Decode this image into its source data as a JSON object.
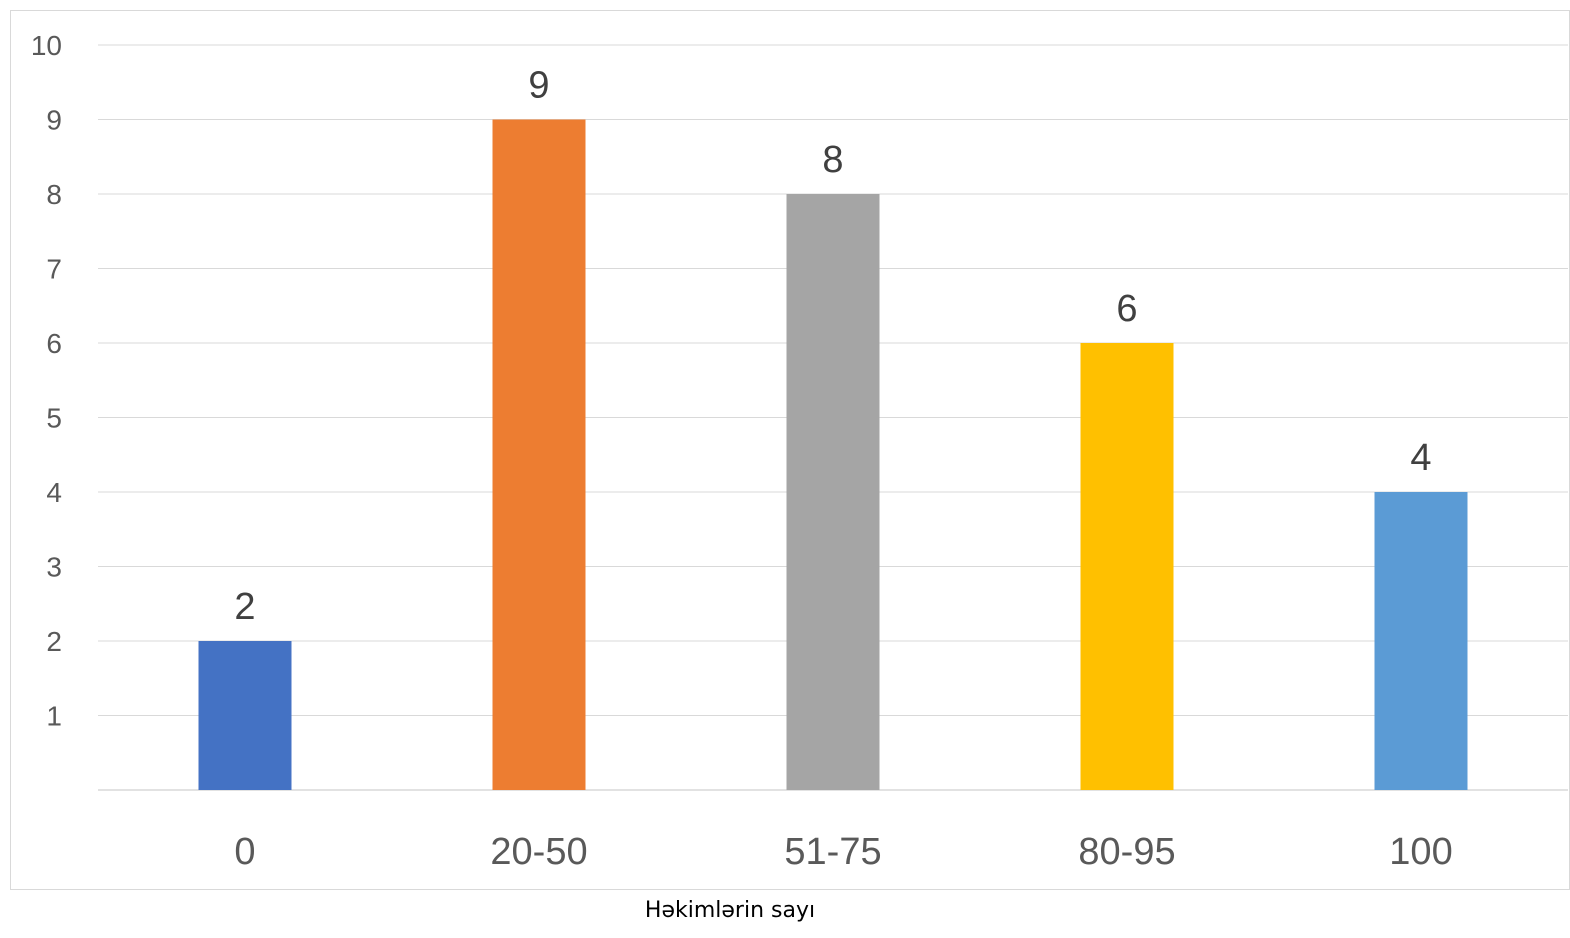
{
  "caption": "Həkimlərin sayı",
  "chart_data": {
    "type": "bar",
    "categories": [
      "0",
      "20-50",
      "51-75",
      "80-95",
      "100"
    ],
    "values": [
      2,
      9,
      8,
      6,
      4
    ],
    "data_labels": [
      "2",
      "9",
      "8",
      "6",
      "4"
    ],
    "colors": [
      "#4472C4",
      "#ED7D31",
      "#A5A5A5",
      "#FFC000",
      "#5B9BD5"
    ],
    "y_ticks": [
      "1",
      "2",
      "3",
      "4",
      "5",
      "6",
      "7",
      "8",
      "9",
      "10"
    ],
    "ylim": [
      0,
      10
    ],
    "grid": true,
    "legend": "none",
    "title": "",
    "xlabel": "",
    "ylabel": ""
  }
}
